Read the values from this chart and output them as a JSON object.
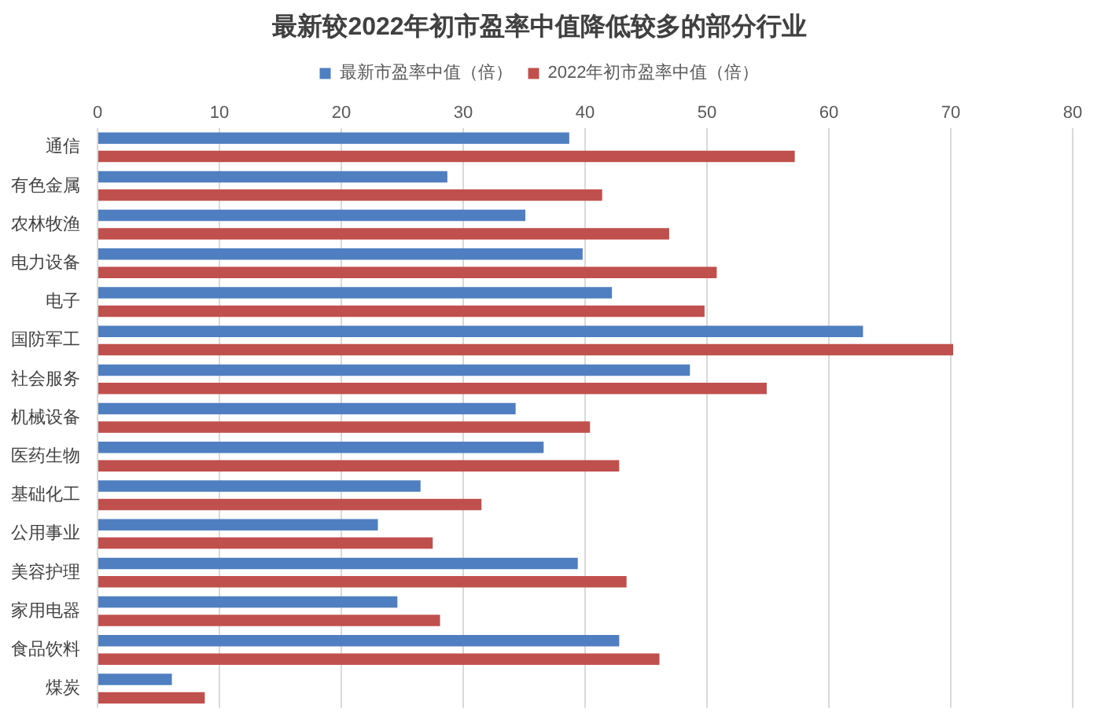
{
  "chart_data": {
    "type": "bar",
    "orientation": "horizontal",
    "title": "最新较2022年初市盈率中值降低较多的部分行业",
    "categories": [
      "通信",
      "有色金属",
      "农林牧渔",
      "电力设备",
      "电子",
      "国防军工",
      "社会服务",
      "机械设备",
      "医药生物",
      "基础化工",
      "公用事业",
      "美容护理",
      "家用电器",
      "食品饮料",
      "煤炭"
    ],
    "series": [
      {
        "name": "最新市盈率中值（倍）",
        "color": "#4f7fc0",
        "values": [
          38.7,
          28.7,
          35.1,
          39.8,
          42.2,
          62.8,
          48.6,
          34.3,
          36.6,
          26.5,
          23.0,
          39.4,
          24.6,
          42.8,
          6.1
        ]
      },
      {
        "name": "2022年初市盈率中值（倍）",
        "color": "#c0504d",
        "values": [
          57.2,
          41.4,
          46.9,
          50.8,
          49.8,
          70.2,
          54.9,
          40.4,
          42.8,
          31.5,
          27.5,
          43.4,
          28.1,
          46.1,
          8.8
        ]
      }
    ],
    "xlim": [
      0,
      80
    ],
    "xticks": [
      0,
      10,
      20,
      30,
      40,
      50,
      60,
      70,
      80
    ],
    "grid": "x",
    "legend": "top"
  }
}
